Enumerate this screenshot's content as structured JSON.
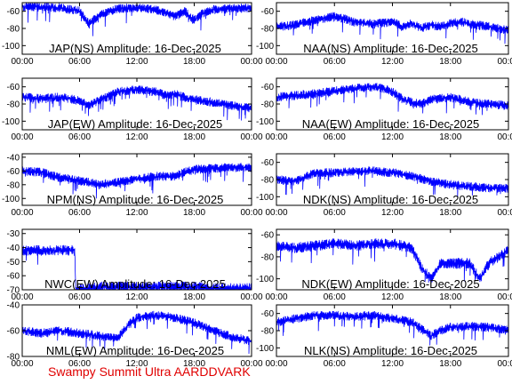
{
  "footer": "Swampy Summit Ultra AARDDVARK",
  "colors": {
    "trace": "#0000ff",
    "axis": "#000000",
    "footer": "#e00000",
    "background": "#ffffff"
  },
  "x_tick_labels": [
    "00:00",
    "06:00",
    "12:00",
    "18:00",
    "00:00"
  ],
  "chart_data": [
    {
      "type": "line",
      "title": "JAP(NS) Amplitude: 16-Dec-2025",
      "xlabel": "",
      "ylabel": "",
      "xlim": [
        "00:00",
        "24:00"
      ],
      "ylim": [
        -110,
        -50
      ],
      "yticks": [
        -100,
        -80,
        -60
      ],
      "grid": false,
      "series": [
        {
          "x": [
            0,
            2,
            4,
            5,
            6,
            7,
            8,
            9,
            10,
            12,
            14,
            16,
            17,
            18,
            19,
            20,
            22,
            24
          ],
          "y": [
            -55,
            -55,
            -56,
            -58,
            -60,
            -75,
            -65,
            -60,
            -57,
            -56,
            -58,
            -66,
            -60,
            -70,
            -62,
            -58,
            -57,
            -56
          ]
        }
      ]
    },
    {
      "type": "line",
      "title": "NAA(NS) Amplitude: 16-Dec-2025",
      "xlabel": "",
      "ylabel": "",
      "xlim": [
        "00:00",
        "24:00"
      ],
      "ylim": [
        -110,
        -50
      ],
      "yticks": [
        -100,
        -80,
        -60
      ],
      "grid": false,
      "series": [
        {
          "x": [
            0,
            2,
            4,
            6,
            8,
            10,
            12,
            13,
            14,
            15,
            16,
            17,
            18,
            19,
            20,
            22,
            24
          ],
          "y": [
            -78,
            -76,
            -70,
            -66,
            -72,
            -75,
            -72,
            -78,
            -74,
            -80,
            -76,
            -78,
            -74,
            -72,
            -75,
            -78,
            -82
          ]
        }
      ]
    },
    {
      "type": "line",
      "title": "JAP(EW) Amplitude: 16-Dec-2025",
      "xlabel": "",
      "ylabel": "",
      "xlim": [
        "00:00",
        "24:00"
      ],
      "ylim": [
        -110,
        -50
      ],
      "yticks": [
        -100,
        -80,
        -60
      ],
      "grid": false,
      "series": [
        {
          "x": [
            0,
            2,
            4,
            6,
            7,
            8,
            10,
            12,
            14,
            15,
            16,
            17,
            18,
            20,
            22,
            24
          ],
          "y": [
            -72,
            -74,
            -72,
            -76,
            -82,
            -76,
            -66,
            -63,
            -66,
            -70,
            -68,
            -72,
            -75,
            -78,
            -82,
            -85
          ]
        }
      ]
    },
    {
      "type": "line",
      "title": "NAA(EW) Amplitude: 16-Dec-2025",
      "xlabel": "",
      "ylabel": "",
      "xlim": [
        "00:00",
        "24:00"
      ],
      "ylim": [
        -110,
        -50
      ],
      "yticks": [
        -100,
        -80,
        -60
      ],
      "grid": false,
      "series": [
        {
          "x": [
            0,
            2,
            4,
            6,
            8,
            10,
            11,
            12,
            13,
            14,
            15,
            16,
            18,
            20,
            22,
            24
          ],
          "y": [
            -72,
            -70,
            -68,
            -65,
            -62,
            -60,
            -62,
            -66,
            -74,
            -78,
            -80,
            -75,
            -72,
            -78,
            -80,
            -82
          ]
        }
      ]
    },
    {
      "type": "line",
      "title": "NPM(NS) Amplitude: 16-Dec-2025",
      "xlabel": "",
      "ylabel": "",
      "xlim": [
        "00:00",
        "24:00"
      ],
      "ylim": [
        -110,
        -35
      ],
      "yticks": [
        -100,
        -80,
        -60,
        -40
      ],
      "grid": false,
      "series": [
        {
          "x": [
            0,
            2,
            4,
            6,
            8,
            10,
            12,
            14,
            16,
            17,
            18,
            20,
            22,
            24
          ],
          "y": [
            -60,
            -62,
            -70,
            -74,
            -80,
            -76,
            -72,
            -68,
            -68,
            -62,
            -58,
            -56,
            -55,
            -55
          ]
        }
      ]
    },
    {
      "type": "line",
      "title": "NDK(NS) Amplitude: 16-Dec-2025",
      "xlabel": "",
      "ylabel": "",
      "xlim": [
        "00:00",
        "24:00"
      ],
      "ylim": [
        -110,
        -50
      ],
      "yticks": [
        -100,
        -80,
        -60
      ],
      "grid": false,
      "series": [
        {
          "x": [
            0,
            2,
            4,
            6,
            8,
            10,
            12,
            14,
            16,
            18,
            20,
            22,
            24
          ],
          "y": [
            -80,
            -82,
            -72,
            -72,
            -70,
            -70,
            -72,
            -76,
            -82,
            -86,
            -88,
            -90,
            -90
          ]
        }
      ]
    },
    {
      "type": "line",
      "title": "NWC(EW) Amplitude: 16-Dec-2025",
      "xlabel": "",
      "ylabel": "",
      "xlim": [
        "00:00",
        "24:00"
      ],
      "ylim": [
        -70,
        -27
      ],
      "yticks": [
        -70,
        -60,
        -50,
        -40,
        -30
      ],
      "grid": false,
      "series": [
        {
          "x": [
            0,
            2,
            4,
            5.5,
            5.6,
            8,
            12,
            16,
            18,
            20,
            24
          ],
          "y": [
            -42,
            -42,
            -42,
            -42,
            -70,
            -68,
            -68,
            -68,
            -68,
            -69,
            -69
          ]
        }
      ]
    },
    {
      "type": "line",
      "title": "NDK(EW) Amplitude: 16-Dec-2025",
      "xlabel": "",
      "ylabel": "",
      "xlim": [
        "00:00",
        "24:00"
      ],
      "ylim": [
        -110,
        -55
      ],
      "yticks": [
        -100,
        -80,
        -60
      ],
      "grid": false,
      "series": [
        {
          "x": [
            0,
            2,
            4,
            6,
            8,
            10,
            12,
            14,
            15,
            16,
            17,
            18,
            20,
            21,
            22,
            24
          ],
          "y": [
            -70,
            -72,
            -70,
            -68,
            -70,
            -68,
            -68,
            -72,
            -90,
            -100,
            -86,
            -86,
            -86,
            -100,
            -86,
            -74
          ]
        }
      ]
    },
    {
      "type": "line",
      "title": "NML(EW) Amplitude: 16-Dec-2025",
      "xlabel": "",
      "ylabel": "",
      "xlim": [
        "00:00",
        "24:00"
      ],
      "ylim": [
        -80,
        -40
      ],
      "yticks": [
        -80,
        -60,
        -40
      ],
      "grid": false,
      "series": [
        {
          "x": [
            0,
            2,
            4,
            6,
            8,
            10,
            11,
            12,
            14,
            16,
            18,
            20,
            22,
            24
          ],
          "y": [
            -60,
            -62,
            -60,
            -62,
            -64,
            -66,
            -56,
            -50,
            -48,
            -50,
            -54,
            -60,
            -65,
            -68
          ]
        }
      ]
    },
    {
      "type": "line",
      "title": "NLK(NS) Amplitude: 16-Dec-2025",
      "xlabel": "",
      "ylabel": "",
      "xlim": [
        "00:00",
        "24:00"
      ],
      "ylim": [
        -110,
        -50
      ],
      "yticks": [
        -100,
        -80,
        -60
      ],
      "grid": false,
      "series": [
        {
          "x": [
            0,
            2,
            4,
            6,
            8,
            10,
            12,
            14,
            15,
            16,
            17,
            18,
            20,
            22,
            24
          ],
          "y": [
            -70,
            -66,
            -62,
            -62,
            -64,
            -62,
            -66,
            -70,
            -78,
            -86,
            -80,
            -76,
            -75,
            -76,
            -80
          ]
        }
      ]
    }
  ]
}
